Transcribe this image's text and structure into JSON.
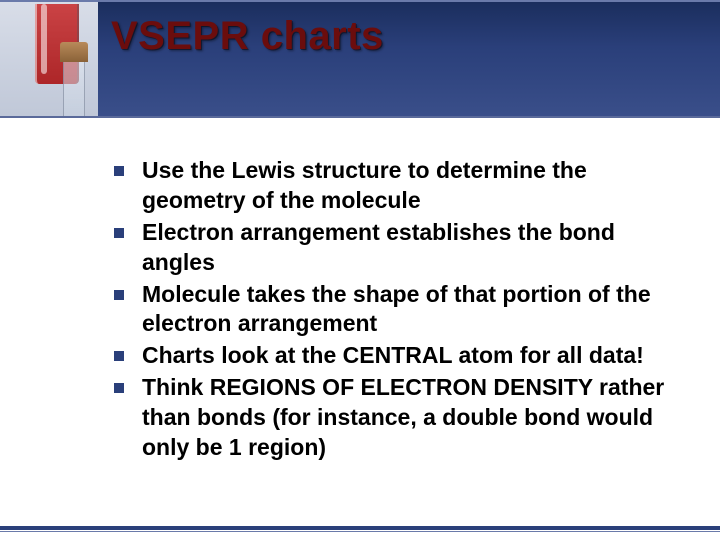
{
  "slide": {
    "title": "VSEPR charts",
    "title_color": "#6b0d0d",
    "header_gradient_top": "#1a2d5c",
    "header_gradient_bottom": "#3a4f8a",
    "bullet_color": "#2a3f7a",
    "text_color": "#000000",
    "background_color": "#ffffff",
    "footer_color": "#2a3f7a",
    "title_fontsize": 40,
    "body_fontsize": 23,
    "bullets": [
      "Use the Lewis structure to determine the geometry of the molecule",
      "Electron arrangement establishes the bond angles",
      "Molecule takes the shape of that portion of the electron arrangement",
      "Charts look at the CENTRAL atom for all data!",
      "Think REGIONS OF ELECTRON DENSITY rather than bonds (for instance, a double bond would only be 1 region)"
    ]
  },
  "flask_image": {
    "liquid_color": "#b82828",
    "background_color": "#c8d0e0",
    "stopper_color": "#9a6a3a"
  }
}
